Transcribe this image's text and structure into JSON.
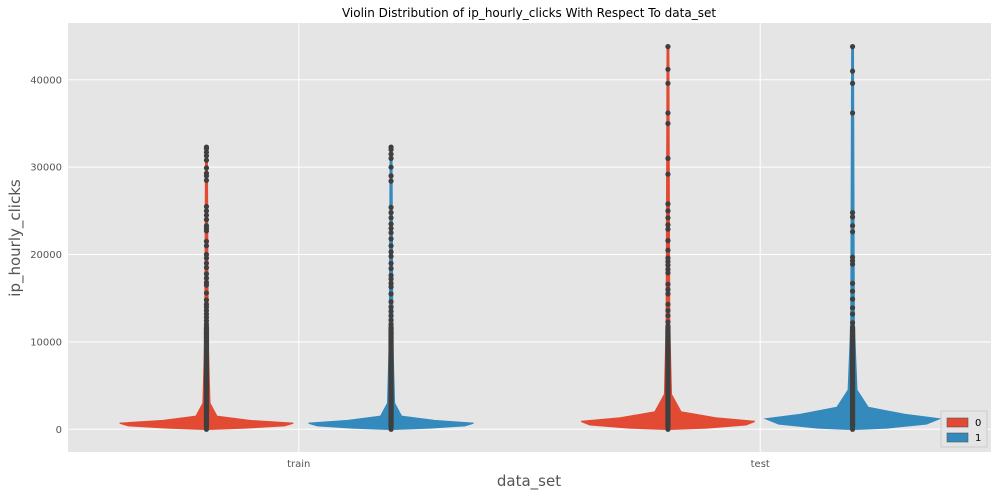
{
  "chart_data": {
    "type": "violin",
    "title": "Violin Distribution of ip_hourly_clicks With Respect To data_set",
    "xlabel": "data_set",
    "ylabel": "ip_hourly_clicks",
    "categories": [
      "train",
      "test"
    ],
    "ylim": [
      -2600,
      46500
    ],
    "yticks": [
      0,
      10000,
      20000,
      30000,
      40000
    ],
    "grid": true,
    "legend_position": "bottom-right",
    "series": [
      {
        "name": "0",
        "color": "#E24A33",
        "groups": [
          {
            "category": "train",
            "min": 0,
            "max": 32300,
            "points": [
              32300,
              32100,
              31700,
              31300,
              30800,
              29900,
              29300,
              29000,
              28500,
              25500,
              25000,
              24500,
              24000,
              23300,
              23000,
              22700,
              21500,
              21000,
              20000,
              19600,
              19000,
              18500,
              17800,
              17300,
              16800,
              16500,
              15600,
              14800,
              14300,
              14000,
              13600,
              13200,
              12800,
              12400,
              12000,
              11500,
              11000,
              10500,
              10000,
              9500,
              9000,
              8500,
              8000,
              7500,
              7000,
              6500,
              6000,
              5500,
              5000,
              4500,
              4000,
              3500,
              3000,
              2500,
              2000,
              1500,
              1000,
              500,
              0
            ],
            "density": [
              [
                0,
                0.06
              ],
              [
                150,
                0.45
              ],
              [
                400,
                0.9
              ],
              [
                700,
                1.0
              ],
              [
                1000,
                0.5
              ],
              [
                1500,
                0.12
              ],
              [
                3000,
                0.04
              ],
              [
                10000,
                0.02
              ],
              [
                32300,
                0.01
              ]
            ]
          },
          {
            "category": "test",
            "min": 0,
            "max": 43800,
            "points": [
              43800,
              41200,
              39600,
              36200,
              35000,
              31000,
              29200,
              25800,
              25000,
              24200,
              23400,
              22900,
              21600,
              20500,
              19600,
              19200,
              18800,
              18300,
              17900,
              16600,
              16000,
              15500,
              14300,
              13600,
              13000,
              12300,
              11800,
              11100,
              10500,
              10000,
              9500,
              9000,
              8500,
              8000,
              7500,
              7000,
              6500,
              6000,
              5500,
              5000,
              4500,
              4000,
              3500,
              3000,
              2500,
              2000,
              1500,
              1000,
              500,
              0
            ],
            "density": [
              [
                0,
                0.06
              ],
              [
                150,
                0.45
              ],
              [
                500,
                0.9
              ],
              [
                900,
                1.0
              ],
              [
                1300,
                0.55
              ],
              [
                2000,
                0.15
              ],
              [
                4000,
                0.04
              ],
              [
                12000,
                0.02
              ],
              [
                43800,
                0.01
              ]
            ]
          }
        ]
      },
      {
        "name": "1",
        "color": "#348ABD",
        "groups": [
          {
            "category": "train",
            "min": 0,
            "max": 32300,
            "points": [
              32300,
              32000,
              31500,
              31000,
              30000,
              29000,
              28400,
              25400,
              24800,
              24200,
              23500,
              23000,
              22500,
              21800,
              21000,
              20300,
              19800,
              19000,
              18400,
              17600,
              17200,
              16700,
              16300,
              15500,
              14600,
              14000,
              13500,
              13000,
              12500,
              12000,
              11500,
              11000,
              10500,
              10000,
              9500,
              9000,
              8500,
              8000,
              7500,
              7000,
              6500,
              6000,
              5500,
              5000,
              4500,
              4000,
              3500,
              3000,
              2500,
              2000,
              1500,
              1000,
              500,
              0
            ],
            "density": [
              [
                0,
                0.06
              ],
              [
                150,
                0.45
              ],
              [
                400,
                0.85
              ],
              [
                700,
                0.95
              ],
              [
                1000,
                0.5
              ],
              [
                1500,
                0.12
              ],
              [
                3000,
                0.04
              ],
              [
                10000,
                0.02
              ],
              [
                32300,
                0.01
              ]
            ]
          },
          {
            "category": "test",
            "min": 0,
            "max": 43800,
            "points": [
              43800,
              41000,
              39600,
              36200,
              24800,
              24300,
              23300,
              22600,
              19700,
              19300,
              18900,
              16700,
              15800,
              14900,
              13900,
              13200,
              12200,
              11400,
              10700,
              10000,
              9500,
              9000,
              8500,
              8000,
              7500,
              7000,
              6500,
              6000,
              5500,
              5000,
              4500,
              4000,
              3500,
              3000,
              2500,
              2000,
              1500,
              1000,
              500,
              0
            ],
            "density": [
              [
                0,
                0.06
              ],
              [
                150,
                0.4
              ],
              [
                600,
                0.85
              ],
              [
                1200,
                1.0
              ],
              [
                1700,
                0.6
              ],
              [
                2500,
                0.18
              ],
              [
                4500,
                0.05
              ],
              [
                12000,
                0.02
              ],
              [
                43800,
                0.01
              ]
            ]
          }
        ]
      }
    ]
  }
}
